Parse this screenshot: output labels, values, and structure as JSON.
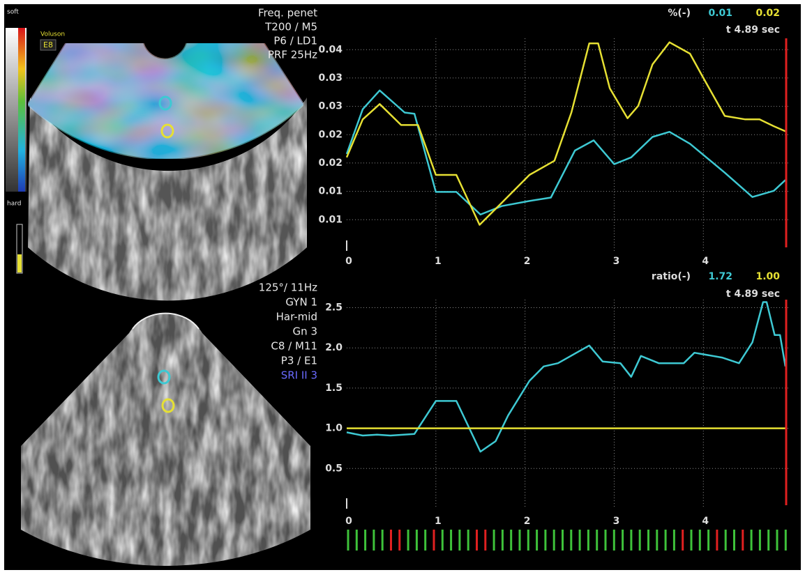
{
  "ultrasound_top": {
    "scale_top": "soft",
    "scale_bottom": "hard",
    "brand": "Voluson",
    "model": "E8",
    "settings": [
      "Freq. penet",
      "T200 / M5",
      "P6 / LD1",
      "PRF 25Hz"
    ]
  },
  "ultrasound_bottom": {
    "settings": [
      "125°/ 11Hz",
      "GYN 1",
      "Har-mid",
      "Gn  3",
      "C8 / M11",
      "P3 / E1",
      "SRI II 3"
    ]
  },
  "chart_data": [
    {
      "type": "line",
      "readout_label": "%(-)",
      "readout_values": [
        "0.01",
        "0.02"
      ],
      "readout_time": "t 4.89 sec",
      "xlim": [
        0,
        4.96
      ],
      "xticks": [
        0,
        1,
        2,
        3,
        4
      ],
      "ylim": [
        0.0045,
        0.042
      ],
      "yticks": [
        {
          "value": 0.01,
          "label": "0.01"
        },
        {
          "value": 0.015,
          "label": "0.01"
        },
        {
          "value": 0.02,
          "label": "0.02"
        },
        {
          "value": 0.025,
          "label": "0.02"
        },
        {
          "value": 0.03,
          "label": "0.03"
        },
        {
          "value": 0.035,
          "label": "0.03"
        },
        {
          "value": 0.04,
          "label": "0.04"
        }
      ],
      "grid": true,
      "series": [
        {
          "color": "#3ec9d3",
          "x": [
            0,
            0.18,
            0.37,
            0.65,
            0.76,
            1.0,
            1.23,
            1.5,
            1.74,
            2.05,
            2.29,
            2.56,
            2.77,
            3.0,
            3.19,
            3.43,
            3.62,
            3.85,
            4.24,
            4.55,
            4.79,
            4.92
          ],
          "values": [
            0.0216,
            0.0295,
            0.0328,
            0.0289,
            0.0287,
            0.0149,
            0.0149,
            0.0109,
            0.0124,
            0.0133,
            0.0139,
            0.0222,
            0.024,
            0.0198,
            0.021,
            0.0246,
            0.0255,
            0.0234,
            0.0183,
            0.014,
            0.0151,
            0.017
          ]
        },
        {
          "color": "#e6e033",
          "x": [
            0,
            0.18,
            0.37,
            0.61,
            0.8,
            1.0,
            1.23,
            1.49,
            1.74,
            2.05,
            2.33,
            2.52,
            2.72,
            2.82,
            2.95,
            3.15,
            3.27,
            3.43,
            3.62,
            3.85,
            4.0,
            4.24,
            4.47,
            4.63,
            4.79,
            4.92
          ],
          "values": [
            0.021,
            0.0277,
            0.0304,
            0.0267,
            0.0267,
            0.0179,
            0.0179,
            0.0091,
            0.013,
            0.0179,
            0.0204,
            0.0289,
            0.0411,
            0.0411,
            0.0332,
            0.0279,
            0.0301,
            0.0374,
            0.0413,
            0.0393,
            0.035,
            0.0283,
            0.0277,
            0.0277,
            0.0265,
            0.0256
          ]
        }
      ]
    },
    {
      "type": "line",
      "readout_label": "ratio(-)",
      "readout_values": [
        "1.72",
        "1.00"
      ],
      "readout_time": "t 4.89 sec",
      "xlim": [
        0,
        4.96
      ],
      "xticks": [
        0,
        1,
        2,
        3,
        4
      ],
      "ylim": [
        0,
        2.6
      ],
      "yticks": [
        0.5,
        {
          "value": 1,
          "label": "1.0"
        },
        1.5,
        {
          "value": 2,
          "label": "2.0"
        },
        2.5
      ],
      "grid": true,
      "series": [
        {
          "color": "#3ec9d3",
          "x": [
            0,
            0.18,
            0.34,
            0.49,
            0.76,
            1.0,
            1.23,
            1.5,
            1.67,
            1.81,
            2.05,
            2.21,
            2.37,
            2.72,
            2.87,
            3.07,
            3.19,
            3.3,
            3.5,
            3.78,
            3.9,
            4.21,
            4.4,
            4.55,
            4.67,
            4.71,
            4.8,
            4.86,
            4.92
          ],
          "values": [
            0.95,
            0.91,
            0.92,
            0.91,
            0.93,
            1.34,
            1.34,
            0.71,
            0.84,
            1.16,
            1.59,
            1.77,
            1.81,
            2.03,
            1.83,
            1.81,
            1.64,
            1.9,
            1.81,
            1.81,
            1.94,
            1.88,
            1.81,
            2.07,
            2.57,
            2.57,
            2.16,
            2.16,
            1.77
          ]
        },
        {
          "color": "#e6e033",
          "x": [
            0,
            4.92
          ],
          "values": [
            1,
            1
          ]
        }
      ]
    }
  ]
}
